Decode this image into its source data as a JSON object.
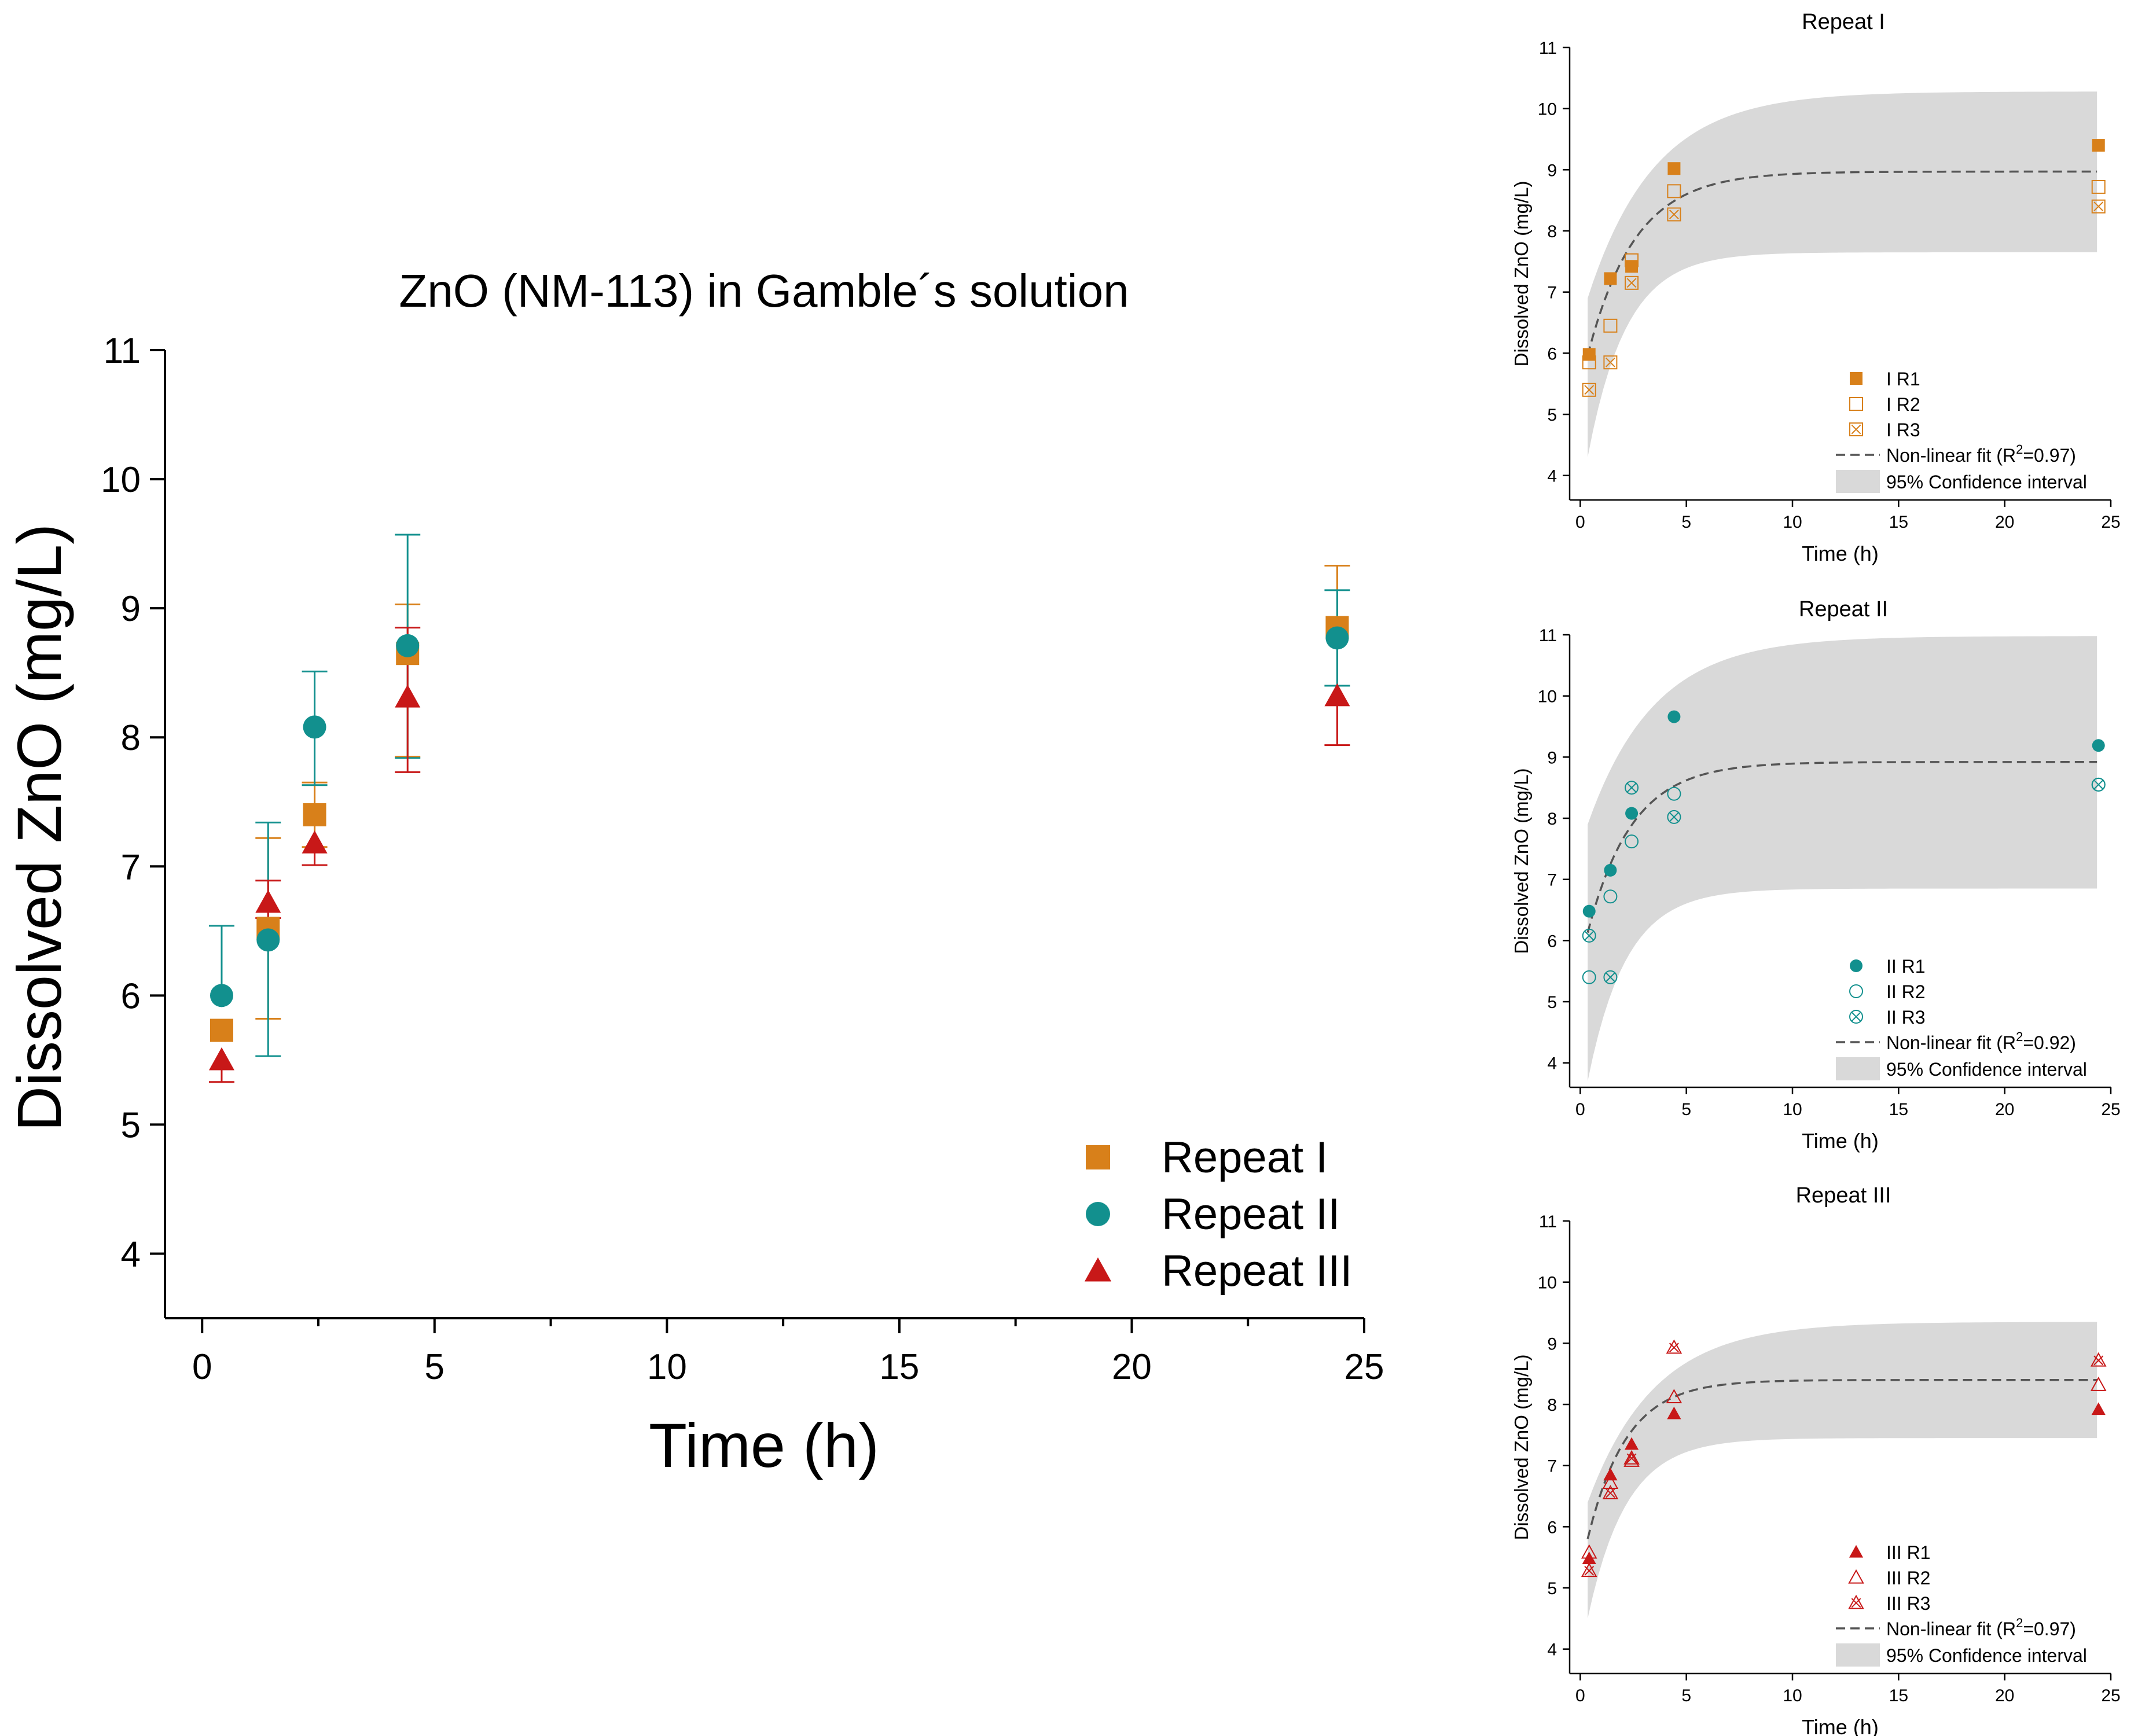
{
  "colors": {
    "repeat_I": "#d8801a",
    "repeat_II": "#12908e",
    "repeat_III": "#c81818",
    "ci_band": "#d9d9d9",
    "fit_line": "#555555",
    "axis": "#000000"
  },
  "chart_data": [
    {
      "type": "scatter",
      "title": "ZnO (NM-113) in Gamble´s solution",
      "xlabel": "Time (h)",
      "ylabel": "Dissolved ZnO (mg/L)",
      "xlim": [
        -0.8,
        25
      ],
      "ylim": [
        3.5,
        11
      ],
      "xticks": [
        0,
        5,
        10,
        15,
        20,
        25
      ],
      "yticks": [
        4,
        5,
        6,
        7,
        8,
        9,
        10,
        11
      ],
      "legend_position": "bottom-right",
      "series": [
        {
          "name": "Repeat I",
          "marker": "square",
          "color_key": "repeat_I",
          "x": [
            0.42,
            1.42,
            2.42,
            4.42,
            24.42
          ],
          "y": [
            5.73,
            6.52,
            7.4,
            8.65,
            8.85
          ],
          "err_lo": [
            0.0,
            0.7,
            0.25,
            0.8,
            0.45
          ],
          "err_hi": [
            0.0,
            0.7,
            0.25,
            0.38,
            0.48
          ]
        },
        {
          "name": "Repeat II",
          "marker": "circle",
          "color_key": "repeat_II",
          "x": [
            0.42,
            1.42,
            2.42,
            4.42,
            24.42
          ],
          "y": [
            6.0,
            6.43,
            8.08,
            8.71,
            8.77
          ],
          "err_lo": [
            0.0,
            0.9,
            0.45,
            0.87,
            0.37
          ],
          "err_hi": [
            0.54,
            0.91,
            0.43,
            0.86,
            0.37
          ]
        },
        {
          "name": "Repeat III",
          "marker": "triangle",
          "color_key": "repeat_III",
          "x": [
            0.42,
            1.42,
            2.42,
            4.42,
            24.42
          ],
          "y": [
            5.5,
            6.72,
            7.18,
            8.31,
            8.32
          ],
          "err_lo": [
            0.17,
            0.12,
            0.17,
            0.58,
            0.38
          ],
          "err_hi": [
            0.0,
            0.17,
            0.0,
            0.54,
            0.0
          ]
        }
      ]
    },
    {
      "type": "scatter",
      "title": "Repeat I",
      "xlabel": "Time (h)",
      "ylabel": "Dissolved ZnO (mg/L)",
      "xlim": [
        -0.5,
        25
      ],
      "ylim": [
        3.6,
        11
      ],
      "xticks": [
        0,
        5,
        10,
        15,
        20,
        25
      ],
      "yticks": [
        4,
        5,
        6,
        7,
        8,
        9,
        10,
        11
      ],
      "color_key": "repeat_I",
      "legend_position": "bottom-right",
      "series": [
        {
          "name": "I R1",
          "marker": "filled-square",
          "x": [
            0.42,
            1.42,
            2.42,
            4.42,
            24.42
          ],
          "y": [
            5.98,
            7.22,
            7.42,
            9.02,
            9.4
          ]
        },
        {
          "name": "I R2",
          "marker": "open-square",
          "x": [
            0.42,
            1.42,
            2.42,
            4.42,
            24.42
          ],
          "y": [
            5.85,
            6.45,
            7.52,
            8.65,
            8.72
          ]
        },
        {
          "name": "I R3",
          "marker": "crossed-square",
          "x": [
            0.42,
            1.42,
            2.42,
            4.42,
            24.42
          ],
          "y": [
            5.4,
            5.85,
            7.15,
            8.27,
            8.4
          ]
        }
      ],
      "fit": {
        "label": "Non-linear fit (R",
        "sup": "2",
        "label_end": "=0.97)",
        "plateau": 8.97,
        "y0": 5.45,
        "k": 0.45
      },
      "ci": {
        "label": "95% Confidence interval",
        "upper_end": 10.28,
        "lower_end": 7.65,
        "upper_start": 6.9,
        "lower_start": 4.3
      }
    },
    {
      "type": "scatter",
      "title": "Repeat II",
      "xlabel": "Time (h)",
      "ylabel": "Dissolved ZnO (mg/L)",
      "xlim": [
        -0.5,
        25
      ],
      "ylim": [
        3.6,
        11
      ],
      "xticks": [
        0,
        5,
        10,
        15,
        20,
        25
      ],
      "yticks": [
        4,
        5,
        6,
        7,
        8,
        9,
        10,
        11
      ],
      "color_key": "repeat_II",
      "legend_position": "bottom-right",
      "series": [
        {
          "name": "II R1",
          "marker": "filled-circle",
          "x": [
            0.42,
            1.42,
            2.42,
            4.42,
            24.42
          ],
          "y": [
            6.48,
            7.15,
            8.08,
            9.66,
            9.19
          ]
        },
        {
          "name": "II R2",
          "marker": "open-circle",
          "x": [
            0.42,
            1.42,
            2.42,
            4.42,
            24.42
          ],
          "y": [
            5.4,
            6.72,
            7.62,
            8.4,
            8.55
          ]
        },
        {
          "name": "II R3",
          "marker": "crossed-circle",
          "x": [
            0.42,
            1.42,
            2.42,
            4.42,
            24.42
          ],
          "y": [
            6.08,
            5.4,
            8.5,
            8.02,
            8.55
          ]
        }
      ],
      "fit": {
        "label": "Non-linear fit (R",
        "sup": "2",
        "label_end": "=0.92)",
        "plateau": 8.92,
        "y0": 5.62,
        "k": 0.48
      },
      "ci": {
        "label": "95% Confidence interval",
        "upper_end": 10.98,
        "lower_end": 6.85,
        "upper_start": 7.9,
        "lower_start": 3.7
      }
    },
    {
      "type": "scatter",
      "title": "Repeat III",
      "xlabel": "Time (h)",
      "ylabel": "Dissolved ZnO (mg/L)",
      "xlim": [
        -0.5,
        25
      ],
      "ylim": [
        3.6,
        11
      ],
      "xticks": [
        0,
        5,
        10,
        15,
        20,
        25
      ],
      "yticks": [
        4,
        5,
        6,
        7,
        8,
        9,
        10,
        11
      ],
      "color_key": "repeat_III",
      "legend_position": "bottom-right",
      "series": [
        {
          "name": "III R1",
          "marker": "filled-triangle",
          "x": [
            0.42,
            1.42,
            2.42,
            4.42,
            24.42
          ],
          "y": [
            5.48,
            6.85,
            7.35,
            7.85,
            7.92
          ]
        },
        {
          "name": "III R2",
          "marker": "open-triangle",
          "x": [
            0.42,
            1.42,
            2.42,
            4.42,
            24.42
          ],
          "y": [
            5.58,
            6.72,
            7.08,
            8.12,
            8.32
          ]
        },
        {
          "name": "III R3",
          "marker": "crossed-triangle",
          "x": [
            0.42,
            1.42,
            2.42,
            4.42,
            24.42
          ],
          "y": [
            5.28,
            6.55,
            7.12,
            8.93,
            8.72
          ]
        }
      ],
      "fit": {
        "label": "Non-linear fit (R",
        "sup": "2",
        "label_end": "=0.97)",
        "plateau": 8.4,
        "y0": 5.25,
        "k": 0.55
      },
      "ci": {
        "label": "95% Confidence interval",
        "upper_end": 9.35,
        "lower_end": 7.45,
        "upper_start": 6.4,
        "lower_start": 4.5
      }
    }
  ]
}
